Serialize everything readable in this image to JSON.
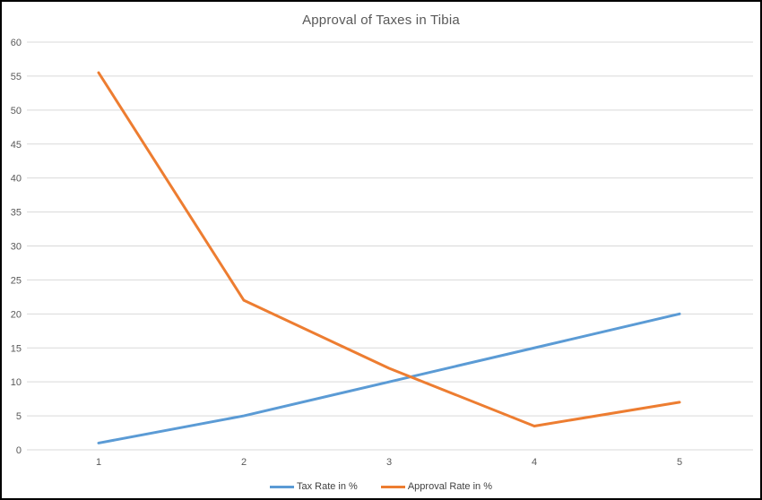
{
  "chart_title": "Approval of Taxes in Tibia",
  "chart_data": {
    "type": "line",
    "title": "Approval of Taxes in Tibia",
    "categories": [
      "1",
      "2",
      "3",
      "4",
      "5"
    ],
    "series": [
      {
        "name": "Tax Rate in %",
        "color": "#5B9BD5",
        "values": [
          1,
          5,
          10,
          15,
          20
        ]
      },
      {
        "name": "Approval Rate in %",
        "color": "#ED7D31",
        "values": [
          55.5,
          22,
          12,
          3.5,
          7
        ]
      }
    ],
    "xlabel": "",
    "ylabel": "",
    "ylim": [
      0,
      60
    ],
    "yticks": [
      0,
      5,
      10,
      15,
      20,
      25,
      30,
      35,
      40,
      45,
      50,
      55,
      60
    ],
    "grid": "horizontal",
    "legend_position": "bottom",
    "gridline_color": "#D9D9D9",
    "tick_color": "#595959",
    "background_color": "#ffffff",
    "border_color": "#000000"
  }
}
